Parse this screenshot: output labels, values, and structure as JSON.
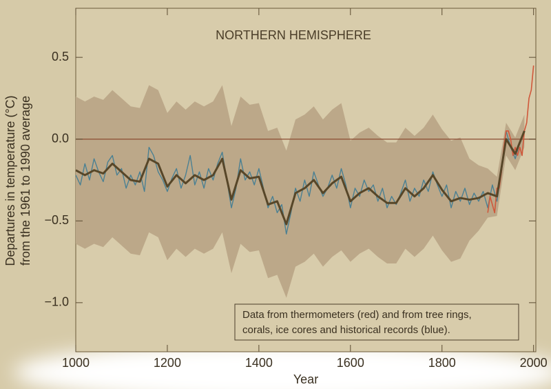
{
  "chart_data": {
    "type": "line",
    "title": "NORTHERN HEMISPHERE",
    "xlabel": "Year",
    "ylabel": [
      "Departures in temperature (°C)",
      "from the 1961 to 1990 average"
    ],
    "annotation": [
      "Data from thermometers (red) and from tree rings,",
      "corals, ice cores and historical records (blue)."
    ],
    "xlim": [
      1000,
      2005
    ],
    "ylim": [
      -1.3,
      0.8
    ],
    "xticks": [
      1000,
      1200,
      1400,
      1600,
      1800,
      2000
    ],
    "yticks": [
      {
        "value": -1.0,
        "label": "−1.0"
      },
      {
        "value": -0.5,
        "label": "−0.5"
      },
      {
        "value": 0,
        "label": "0.0"
      },
      {
        "value": 0.5,
        "label": "0.5"
      }
    ],
    "reference_line": 0,
    "uncertainty": {
      "color": "#bca889",
      "x": [
        1000,
        1020,
        1040,
        1060,
        1080,
        1100,
        1120,
        1140,
        1160,
        1180,
        1200,
        1220,
        1240,
        1260,
        1280,
        1300,
        1320,
        1340,
        1360,
        1380,
        1400,
        1420,
        1440,
        1460,
        1480,
        1500,
        1520,
        1540,
        1560,
        1580,
        1600,
        1620,
        1640,
        1660,
        1680,
        1700,
        1720,
        1740,
        1760,
        1780,
        1800,
        1820,
        1840,
        1860,
        1880,
        1900,
        1920,
        1940,
        1960,
        1980
      ],
      "upper": [
        0.26,
        0.23,
        0.26,
        0.24,
        0.3,
        0.25,
        0.2,
        0.19,
        0.33,
        0.3,
        0.16,
        0.23,
        0.18,
        0.23,
        0.2,
        0.23,
        0.33,
        0.08,
        0.26,
        0.21,
        0.22,
        0.05,
        0.07,
        -0.07,
        0.12,
        0.15,
        0.2,
        0.12,
        0.18,
        0.22,
        -0.01,
        0.04,
        0.07,
        0.02,
        -0.02,
        -0.02,
        0.07,
        0.02,
        0.07,
        0.15,
        0.06,
        -0.01,
        0.01,
        -0.12,
        -0.16,
        -0.18,
        -0.23,
        0.1,
        0.01,
        0.15
      ],
      "lower": [
        -0.64,
        -0.67,
        -0.64,
        -0.66,
        -0.6,
        -0.65,
        -0.7,
        -0.71,
        -0.57,
        -0.6,
        -0.74,
        -0.67,
        -0.72,
        -0.67,
        -0.7,
        -0.67,
        -0.57,
        -0.82,
        -0.64,
        -0.69,
        -0.68,
        -0.85,
        -0.83,
        -0.97,
        -0.78,
        -0.75,
        -0.7,
        -0.78,
        -0.72,
        -0.68,
        -0.75,
        -0.7,
        -0.67,
        -0.72,
        -0.76,
        -0.76,
        -0.67,
        -0.72,
        -0.67,
        -0.59,
        -0.68,
        -0.75,
        -0.73,
        -0.62,
        -0.56,
        -0.48,
        -0.47,
        -0.1,
        -0.19,
        -0.05
      ]
    },
    "annual": {
      "color": "#4a8093",
      "x": [
        1000,
        1010,
        1020,
        1030,
        1040,
        1050,
        1060,
        1070,
        1080,
        1090,
        1100,
        1110,
        1120,
        1130,
        1140,
        1150,
        1160,
        1170,
        1180,
        1190,
        1200,
        1210,
        1220,
        1230,
        1240,
        1250,
        1260,
        1270,
        1280,
        1290,
        1300,
        1310,
        1320,
        1330,
        1340,
        1350,
        1360,
        1370,
        1380,
        1390,
        1400,
        1410,
        1420,
        1430,
        1440,
        1450,
        1460,
        1470,
        1480,
        1490,
        1500,
        1510,
        1520,
        1530,
        1540,
        1550,
        1560,
        1570,
        1580,
        1590,
        1600,
        1610,
        1620,
        1630,
        1640,
        1650,
        1660,
        1670,
        1680,
        1690,
        1700,
        1710,
        1720,
        1730,
        1740,
        1750,
        1760,
        1770,
        1780,
        1790,
        1800,
        1810,
        1820,
        1830,
        1840,
        1850,
        1860,
        1870,
        1880,
        1890,
        1900,
        1910,
        1920,
        1930,
        1940,
        1950,
        1960,
        1970,
        1980
      ],
      "values": [
        -0.22,
        -0.28,
        -0.15,
        -0.25,
        -0.12,
        -0.2,
        -0.26,
        -0.14,
        -0.1,
        -0.22,
        -0.18,
        -0.3,
        -0.22,
        -0.28,
        -0.2,
        -0.32,
        -0.05,
        -0.1,
        -0.2,
        -0.25,
        -0.32,
        -0.24,
        -0.18,
        -0.3,
        -0.22,
        -0.1,
        -0.28,
        -0.2,
        -0.3,
        -0.18,
        -0.25,
        -0.15,
        -0.08,
        -0.25,
        -0.42,
        -0.3,
        -0.12,
        -0.25,
        -0.2,
        -0.28,
        -0.18,
        -0.3,
        -0.42,
        -0.35,
        -0.45,
        -0.4,
        -0.58,
        -0.45,
        -0.3,
        -0.38,
        -0.25,
        -0.35,
        -0.2,
        -0.28,
        -0.35,
        -0.3,
        -0.22,
        -0.3,
        -0.18,
        -0.28,
        -0.42,
        -0.3,
        -0.35,
        -0.25,
        -0.32,
        -0.28,
        -0.38,
        -0.3,
        -0.42,
        -0.35,
        -0.4,
        -0.33,
        -0.25,
        -0.38,
        -0.3,
        -0.35,
        -0.25,
        -0.32,
        -0.2,
        -0.28,
        -0.35,
        -0.28,
        -0.42,
        -0.32,
        -0.38,
        -0.3,
        -0.4,
        -0.33,
        -0.38,
        -0.32,
        -0.42,
        -0.28,
        -0.38,
        -0.2,
        0.05,
        -0.05,
        -0.12,
        -0.02,
        0.05
      ]
    },
    "thermometer": {
      "color": "#d0573a",
      "x": [
        1900,
        1905,
        1910,
        1915,
        1920,
        1925,
        1930,
        1935,
        1940,
        1945,
        1950,
        1955,
        1960,
        1965,
        1970,
        1975,
        1980,
        1985,
        1990,
        1995,
        2000
      ],
      "values": [
        -0.45,
        -0.35,
        -0.4,
        -0.45,
        -0.3,
        -0.3,
        -0.2,
        -0.05,
        0.05,
        0.05,
        0.0,
        -0.1,
        -0.05,
        -0.1,
        -0.05,
        -0.1,
        0.05,
        0.1,
        0.25,
        0.3,
        0.45
      ]
    },
    "smoothed": {
      "color": "#574628",
      "x": [
        1000,
        1020,
        1040,
        1060,
        1080,
        1100,
        1120,
        1140,
        1160,
        1180,
        1200,
        1220,
        1240,
        1260,
        1280,
        1300,
        1320,
        1340,
        1360,
        1380,
        1400,
        1420,
        1440,
        1460,
        1480,
        1500,
        1520,
        1540,
        1560,
        1580,
        1600,
        1620,
        1640,
        1660,
        1680,
        1700,
        1720,
        1740,
        1760,
        1780,
        1800,
        1820,
        1840,
        1860,
        1880,
        1900,
        1920,
        1940,
        1960,
        1980
      ],
      "values": [
        -0.19,
        -0.22,
        -0.19,
        -0.21,
        -0.15,
        -0.2,
        -0.25,
        -0.26,
        -0.12,
        -0.15,
        -0.29,
        -0.22,
        -0.27,
        -0.22,
        -0.25,
        -0.22,
        -0.12,
        -0.37,
        -0.19,
        -0.24,
        -0.23,
        -0.4,
        -0.38,
        -0.52,
        -0.33,
        -0.3,
        -0.25,
        -0.33,
        -0.27,
        -0.23,
        -0.38,
        -0.33,
        -0.3,
        -0.35,
        -0.39,
        -0.39,
        -0.3,
        -0.35,
        -0.3,
        -0.22,
        -0.31,
        -0.38,
        -0.36,
        -0.37,
        -0.36,
        -0.33,
        -0.35,
        0.0,
        -0.09,
        0.05
      ]
    }
  }
}
